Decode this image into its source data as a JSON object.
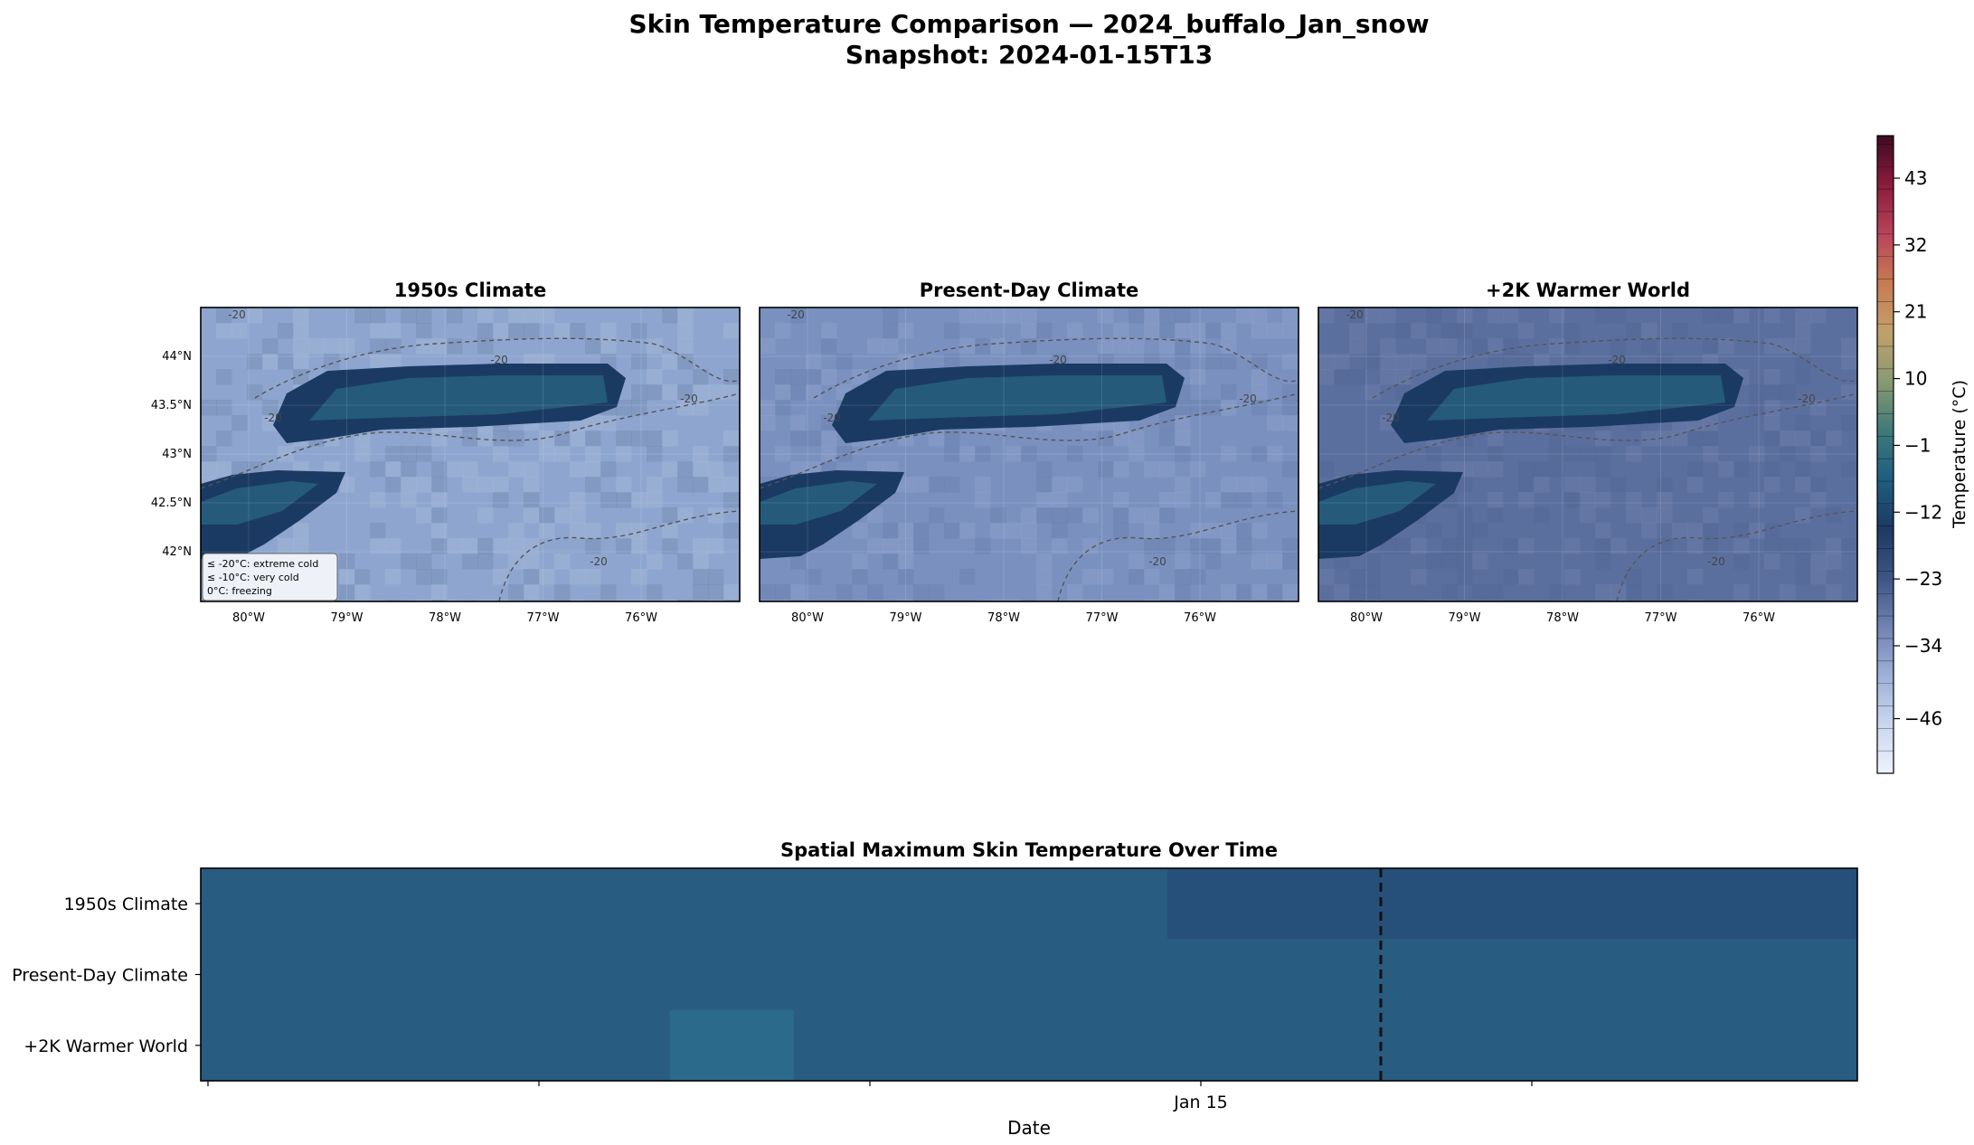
{
  "figure": {
    "title_line1": "Skin Temperature Comparison — 2024_buffalo_Jan_snow",
    "title_line2": "Snapshot: 2024-01-15T13"
  },
  "colors": {
    "frozen_lake": "#1b3a63",
    "lake_core": "#27607f",
    "land_1950s": "#8ea6cf",
    "land_present": "#7a91c0",
    "land_plus2k": "#5b6f9f",
    "contour": "#555555",
    "row_base": "#285c80",
    "row_cool": "#26507a",
    "row_warm": "#2b6a8a",
    "event_line": "#111111"
  },
  "chart_data": [
    {
      "type": "heatmap",
      "title": "1950s Climate",
      "lon_ticks": [
        "80°W",
        "79°W",
        "78°W",
        "77°W",
        "76°W"
      ],
      "lat_ticks": [
        "44°N",
        "43.5°N",
        "43°N",
        "42.5°N",
        "42°N"
      ],
      "contour_label": "-20",
      "legend_lines": [
        "≤ -20°C: extreme cold",
        "≤ -10°C: very cold",
        "0°C: freezing"
      ]
    },
    {
      "type": "heatmap",
      "title": "Present-Day Climate",
      "lon_ticks": [
        "80°W",
        "79°W",
        "78°W",
        "77°W",
        "76°W"
      ],
      "contour_label": "-20"
    },
    {
      "type": "heatmap",
      "title": "+2K Warmer World",
      "lon_ticks": [
        "80°W",
        "79°W",
        "78°W",
        "77°W",
        "76°W"
      ],
      "contour_label": "-20"
    },
    {
      "type": "heatmap",
      "title": "Spatial Maximum Skin Temperature Over Time",
      "xlabel": "Date",
      "x_tick_labels": [
        "Jan 15"
      ],
      "rows": [
        "1950s Climate",
        "Present-Day Climate",
        "+2K Warmer World"
      ],
      "event_line": "2024-01-15T13"
    }
  ],
  "colorbar": {
    "label": "Temperature (°C)",
    "ticks": [
      43,
      32,
      21,
      10,
      -1,
      -12,
      -23,
      -34,
      -46
    ],
    "range": [
      -55,
      50
    ],
    "stops": [
      "#eef3fc",
      "#c9d6ee",
      "#9db0d8",
      "#6f82b2",
      "#3d5483",
      "#1d3a62",
      "#1e5f80",
      "#3f7a7a",
      "#8a9a72",
      "#c2a06a",
      "#c77a52",
      "#b8445a",
      "#8a1c3c",
      "#3f0a22"
    ]
  }
}
